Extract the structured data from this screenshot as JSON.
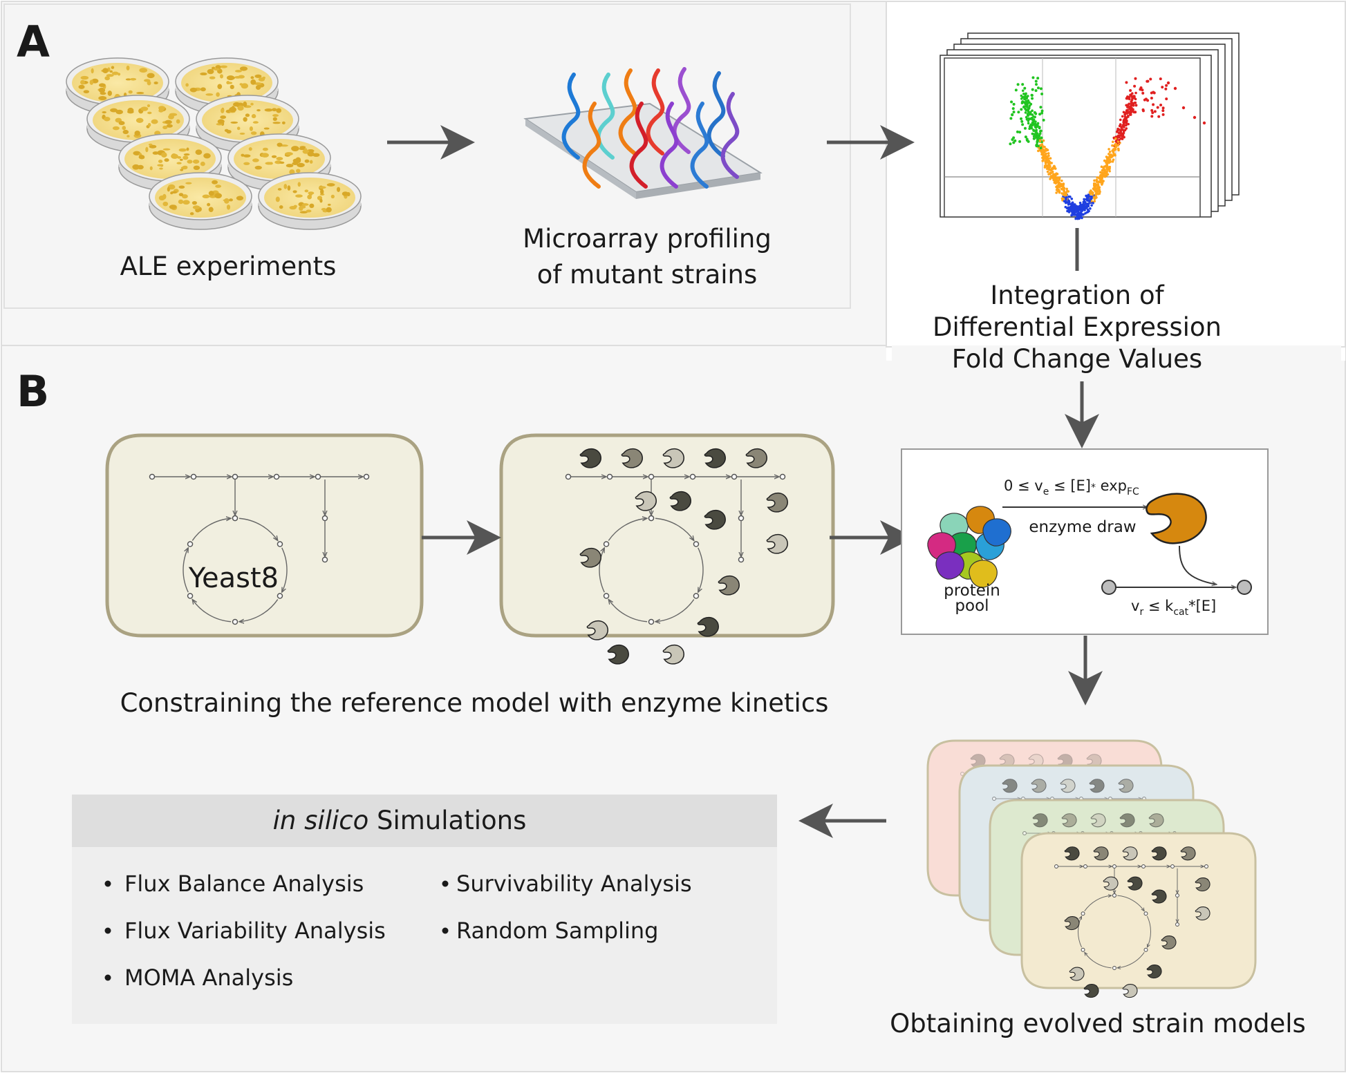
{
  "panel_a": {
    "label": "A",
    "ale_caption": "ALE experiments",
    "microarray_caption": [
      "Microarray profiling",
      "of mutant strains"
    ],
    "integration_caption": [
      "Integration of",
      "Differential Expression",
      "Fold Change Values"
    ]
  },
  "panel_b": {
    "label": "B",
    "model_name": "Yeast8",
    "constraining_caption": "Constraining the reference model with enzyme kinetics",
    "enzyme_box": {
      "constraint_top_main": "0 ≤ v",
      "constraint_top_sub1": "e",
      "constraint_top_mid": " ≤ [E]",
      "constraint_top_star": "*",
      "constraint_top_exp": " exp",
      "constraint_top_sub2": "FC",
      "enzyme_draw": "enzyme draw",
      "protein_pool": [
        "protein",
        "pool"
      ],
      "constraint_bottom_main": "v",
      "constraint_bottom_sub1": "r",
      "constraint_bottom_mid": " ≤ k",
      "constraint_bottom_sub2": "cat",
      "constraint_bottom_end": "*[E]"
    },
    "evolved_caption": "Obtaining evolved strain models",
    "simulations": {
      "title_italic": "in silico",
      "title_rest": " Simulations",
      "left_items": [
        "Flux Balance Analysis",
        "Flux Variability Analysis",
        "MOMA Analysis"
      ],
      "right_items": [
        "Survivability Analysis",
        "Random Sampling"
      ]
    }
  },
  "colors": {
    "panel_bg": "#f6f6f6",
    "model_fill": "#f1efe0",
    "model_border": "#aaa282",
    "arrow": "#555555",
    "sim_header": "#dedede",
    "sim_body": "#eeeeee",
    "enzyme_orange": "#d6880f",
    "volcano_green": "#21c421",
    "volcano_orange": "#ffa51c",
    "volcano_red": "#e02020",
    "volcano_blue": "#1f3fe0",
    "stack_colors": [
      "#f9ddd6",
      "#dfe8ec",
      "#dde9cf",
      "#f3ead0"
    ]
  }
}
